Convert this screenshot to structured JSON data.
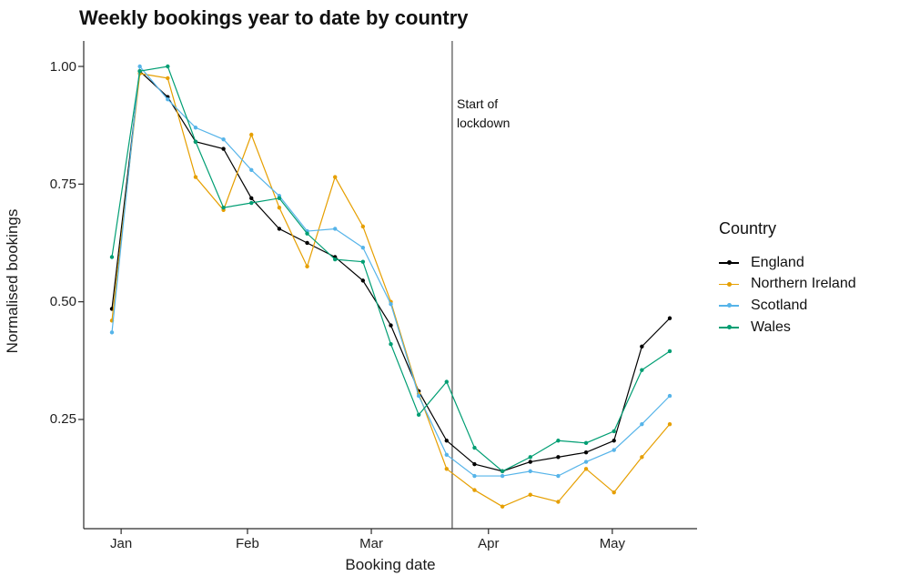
{
  "title": "Weekly bookings year to date by country",
  "chart_data": {
    "type": "line",
    "title": "Weekly bookings year to date by country",
    "xlabel": "Booking date",
    "ylabel": "Normalised bookings",
    "x_unit": "week_index",
    "x_weeks": [
      1,
      2,
      3,
      4,
      5,
      6,
      7,
      8,
      9,
      10,
      11,
      12,
      13,
      14,
      15,
      16,
      17,
      18,
      19,
      20,
      21
    ],
    "x_tick_labels": [
      {
        "label": "Jan",
        "pos": 0.33
      },
      {
        "label": "Feb",
        "pos": 4.86
      },
      {
        "label": "Mar",
        "pos": 9.3
      },
      {
        "label": "Apr",
        "pos": 13.5
      },
      {
        "label": "May",
        "pos": 17.94
      }
    ],
    "y_ticks": [
      {
        "label": "1.00",
        "value": 1.0
      },
      {
        "label": "0.75",
        "value": 0.75
      },
      {
        "label": "0.50",
        "value": 0.5
      },
      {
        "label": "0.25",
        "value": 0.25
      }
    ],
    "ylim": [
      0.02,
      1.05
    ],
    "grid": false,
    "legend_title": "Country",
    "legend_position": "right",
    "annotation": {
      "lines": [
        "Start of",
        "lockdown"
      ],
      "x_index": 12.2
    },
    "axis_color": "#2b2b2b",
    "lockdown_line_color": "#3d3d3d",
    "series": [
      {
        "name": "England",
        "color": "#000000",
        "values": [
          0.485,
          0.99,
          0.935,
          0.84,
          0.825,
          0.72,
          0.655,
          0.625,
          0.595,
          0.545,
          0.45,
          0.31,
          0.205,
          0.155,
          0.14,
          0.16,
          0.17,
          0.18,
          0.205,
          0.405,
          0.465
        ]
      },
      {
        "name": "Northern Ireland",
        "color": "#E69F00",
        "values": [
          0.46,
          0.985,
          0.975,
          0.765,
          0.695,
          0.855,
          0.7,
          0.575,
          0.765,
          0.66,
          0.5,
          0.305,
          0.145,
          0.1,
          0.065,
          0.09,
          0.075,
          0.145,
          0.095,
          0.17,
          0.24
        ]
      },
      {
        "name": "Scotland",
        "color": "#56B4E9",
        "values": [
          0.435,
          1.0,
          0.93,
          0.87,
          0.845,
          0.78,
          0.725,
          0.65,
          0.655,
          0.615,
          0.495,
          0.3,
          0.175,
          0.13,
          0.13,
          0.14,
          0.13,
          0.16,
          0.185,
          0.24,
          0.3
        ]
      },
      {
        "name": "Wales",
        "color": "#009E73",
        "values": [
          0.595,
          0.99,
          1.0,
          0.84,
          0.7,
          0.71,
          0.72,
          0.645,
          0.59,
          0.585,
          0.41,
          0.26,
          0.33,
          0.19,
          0.14,
          0.17,
          0.205,
          0.2,
          0.225,
          0.355,
          0.395
        ]
      }
    ]
  }
}
